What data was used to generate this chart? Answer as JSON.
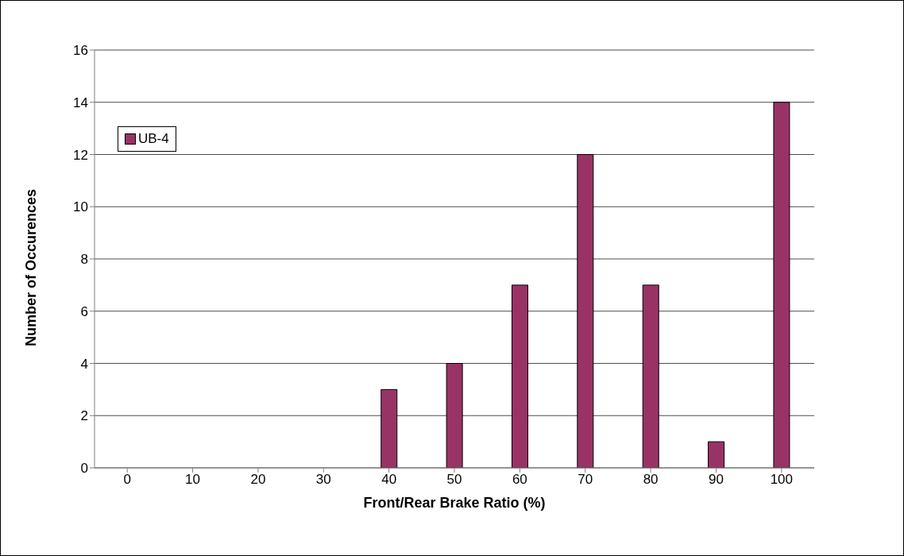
{
  "chart_data": {
    "type": "bar",
    "xlabel": "Front/Rear Brake Ratio (%)",
    "ylabel": "Number of Occurences",
    "categories": [
      "0",
      "10",
      "20",
      "30",
      "40",
      "50",
      "60",
      "70",
      "80",
      "90",
      "100"
    ],
    "series": [
      {
        "name": "UB-4",
        "color": "#993366",
        "values": [
          0,
          0,
          0,
          0,
          3,
          4,
          7,
          12,
          7,
          1,
          14
        ]
      }
    ],
    "ylim": [
      0,
      16
    ],
    "yticks": [
      0,
      2,
      4,
      6,
      8,
      10,
      12,
      14,
      16
    ],
    "grid": "y",
    "legend": "top left"
  }
}
